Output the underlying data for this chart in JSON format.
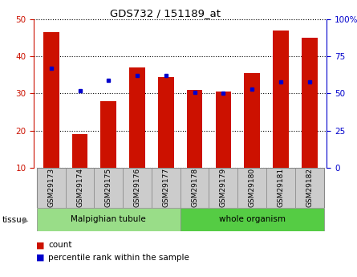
{
  "title": "GDS732 / 151189_at",
  "samples": [
    "GSM29173",
    "GSM29174",
    "GSM29175",
    "GSM29176",
    "GSM29177",
    "GSM29178",
    "GSM29179",
    "GSM29180",
    "GSM29181",
    "GSM29182"
  ],
  "counts": [
    46.5,
    19.0,
    28.0,
    37.0,
    34.5,
    31.0,
    30.5,
    35.5,
    47.0,
    45.0
  ],
  "percentiles": [
    67,
    52,
    59,
    62,
    62,
    51,
    50,
    53,
    58,
    58
  ],
  "ylim_left": [
    10,
    50
  ],
  "ylim_right": [
    0,
    100
  ],
  "yticks_left": [
    10,
    20,
    30,
    40,
    50
  ],
  "yticks_right": [
    0,
    25,
    50,
    75,
    100
  ],
  "tissue_groups": [
    {
      "label": "Malpighian tubule",
      "start": 0,
      "end": 5,
      "color": "#99dd88"
    },
    {
      "label": "whole organism",
      "start": 5,
      "end": 10,
      "color": "#55cc44"
    }
  ],
  "bar_color": "#cc1100",
  "dot_color": "#0000cc",
  "grid_color": "#000000",
  "left_axis_color": "#cc1100",
  "right_axis_color": "#0000cc",
  "bar_width": 0.55,
  "bg_sample_box": "#cccccc",
  "border_color": "#888888"
}
